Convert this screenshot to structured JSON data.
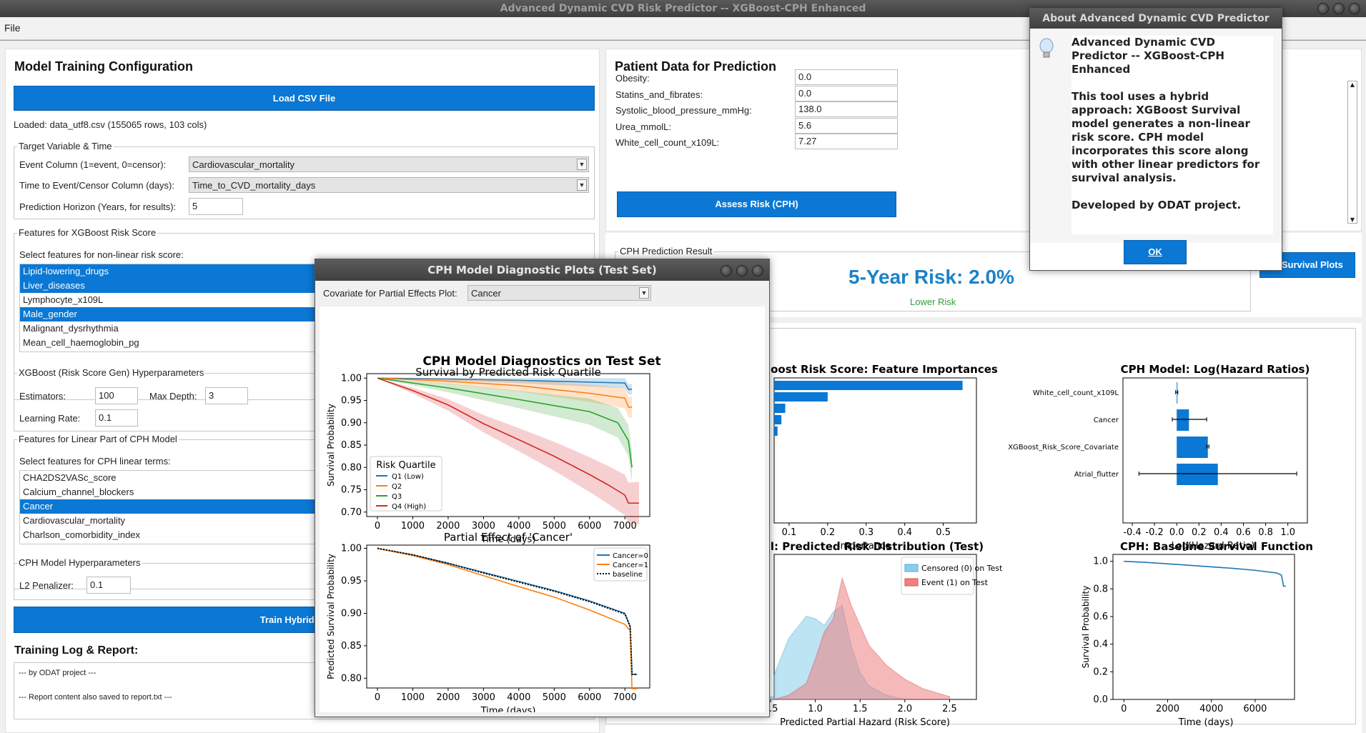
{
  "app": {
    "title": "Advanced Dynamic CVD Risk Predictor -- XGBoost-CPH Enhanced",
    "menu_file": "File"
  },
  "left": {
    "title": "Model Training Configuration",
    "load_button": "Load CSV File",
    "loaded_text": "Loaded: data_utf8.csv (155065 rows, 103 cols)",
    "target_group": "Target Variable & Time",
    "event_label": "Event Column (1=event, 0=censor):",
    "event_value": "Cardiovascular_mortality",
    "time_label": "Time to Event/Censor Column (days):",
    "time_value": "Time_to_CVD_mortality_days",
    "horizon_label": "Prediction Horizon (Years, for results):",
    "horizon_value": "5",
    "xgb_features_group": "Features for XGBoost Risk Score",
    "xgb_features_hint": "Select features for non-linear risk score:",
    "xgb_features": [
      {
        "label": "Lipid-lowering_drugs",
        "selected": true
      },
      {
        "label": "Liver_diseases",
        "selected": true
      },
      {
        "label": "Lymphocyte_x109L",
        "selected": false
      },
      {
        "label": "Male_gender",
        "selected": true
      },
      {
        "label": "Malignant_dysrhythmia",
        "selected": false
      },
      {
        "label": "Mean_cell_haemoglobin_pg",
        "selected": false
      }
    ],
    "xgb_hyper_group": "XGBoost (Risk Score Gen) Hyperparameters",
    "estimators_label": "Estimators:",
    "estimators_value": "100",
    "maxdepth_label": "Max Depth:",
    "maxdepth_value": "3",
    "lr_label": "Learning Rate:",
    "lr_value": "0.1",
    "cph_features_group": "Features for Linear Part of CPH Model",
    "cph_features_hint": "Select features for CPH linear terms:",
    "cph_features": [
      {
        "label": "CHA2DS2VASc_score",
        "selected": false
      },
      {
        "label": "Calcium_channel_blockers",
        "selected": false
      },
      {
        "label": "Cancer",
        "selected": true
      },
      {
        "label": "Cardiovascular_mortality",
        "selected": false
      },
      {
        "label": "Charlson_comorbidity_index",
        "selected": false
      }
    ],
    "cph_hyper_group": "CPH Model Hyperparameters",
    "l2_label": "L2 Penalizer:",
    "l2_value": "0.1",
    "train_button": "Train Hybrid XGBoo",
    "log_title": "Training Log & Report:",
    "log_lines": [
      "--- by ODAT project ---",
      "--- Report content also saved to report.txt ---"
    ]
  },
  "patient": {
    "title": "Patient Data for Prediction",
    "fields": [
      {
        "label": "Obesity:",
        "value": "0.0"
      },
      {
        "label": "Statins_and_fibrates:",
        "value": "0.0"
      },
      {
        "label": "Systolic_blood_pressure_mmHg:",
        "value": "138.0"
      },
      {
        "label": "Urea_mmolL:",
        "value": "5.6"
      },
      {
        "label": "White_cell_count_x109L:",
        "value": "7.27"
      }
    ],
    "assess_button": "Assess Risk (CPH)"
  },
  "result": {
    "group": "CPH Prediction Result",
    "risk_text": "5-Year Risk: 2.0%",
    "risk_level": "Lower Risk",
    "survival_button": "w Survival Plots"
  },
  "about": {
    "title": "About Advanced Dynamic CVD Predictor",
    "heading": "Advanced Dynamic CVD Predictor -- XGBoost-CPH Enhanced",
    "body": "This tool uses a hybrid approach: XGBoost Survival model generates a non-linear risk score. CPH model incorporates this score along with other linear predictors for survival analysis.",
    "footer": "Developed by ODAT project.",
    "ok": "OK"
  },
  "diag": {
    "title": "CPH Model Diagnostic Plots (Test Set)",
    "covariate_label": "Covariate for Partial Effects Plot:",
    "covariate_value": "Cancer"
  },
  "colors": {
    "accent": "#0a78d4",
    "q1": "#1f77b4",
    "q2": "#ff7f0e",
    "q3": "#2ca02c",
    "q4": "#d62728",
    "risk_text": "#1a82c8",
    "lower_risk": "#2e9e3a"
  },
  "chart_data": [
    {
      "type": "line",
      "suptitle": "CPH Model Diagnostics on Test Set",
      "title": "Survival by Predicted Risk Quartile",
      "xlabel": "Time (days)",
      "ylabel": "Survival Probability",
      "xlim": [
        0,
        7400
      ],
      "ylim": [
        0.69,
        1.01
      ],
      "xticks": [
        0,
        1000,
        2000,
        3000,
        4000,
        5000,
        6000,
        7000
      ],
      "yticks": [
        0.7,
        0.75,
        0.8,
        0.85,
        0.9,
        0.95,
        1.0
      ],
      "legend_title": "Risk Quartile",
      "legend_position": "lower-left",
      "series": [
        {
          "name": "Q1 (Low)",
          "x": [
            0,
            2000,
            4000,
            6000,
            7000,
            7100,
            7200
          ],
          "y": [
            1.0,
            0.998,
            0.995,
            0.991,
            0.989,
            0.975,
            0.975
          ]
        },
        {
          "name": "Q2",
          "x": [
            0,
            2000,
            4000,
            6000,
            7000,
            7100,
            7200
          ],
          "y": [
            1.0,
            0.993,
            0.983,
            0.966,
            0.955,
            0.935,
            0.935
          ]
        },
        {
          "name": "Q3",
          "x": [
            0,
            2000,
            4000,
            6000,
            6800,
            7100,
            7200
          ],
          "y": [
            1.0,
            0.978,
            0.952,
            0.925,
            0.9,
            0.86,
            0.8
          ]
        },
        {
          "name": "Q4 (High)",
          "x": [
            0,
            1000,
            2000,
            3000,
            4000,
            5000,
            6000,
            6500,
            7000,
            7100,
            7400
          ],
          "y": [
            1.0,
            0.972,
            0.94,
            0.898,
            0.862,
            0.825,
            0.784,
            0.762,
            0.738,
            0.72,
            0.72
          ]
        }
      ]
    },
    {
      "type": "line",
      "title": "Partial Effect of 'Cancer'",
      "xlabel": "Time (days)",
      "ylabel": "Predicted Survival Probability",
      "xlim": [
        0,
        7400
      ],
      "ylim": [
        0.785,
        1.005
      ],
      "xticks": [
        0,
        1000,
        2000,
        3000,
        4000,
        5000,
        6000,
        7000
      ],
      "yticks": [
        0.8,
        0.85,
        0.9,
        0.95,
        1.0
      ],
      "legend_position": "top-right",
      "series": [
        {
          "name": "Cancer=0",
          "x": [
            0,
            1000,
            2000,
            3000,
            4000,
            5000,
            6000,
            7000,
            7150,
            7200,
            7350
          ],
          "y": [
            1.0,
            0.99,
            0.977,
            0.963,
            0.949,
            0.935,
            0.919,
            0.9,
            0.88,
            0.806,
            0.806
          ]
        },
        {
          "name": "Cancer=1",
          "x": [
            0,
            1000,
            2000,
            3000,
            4000,
            5000,
            6000,
            7000,
            7150,
            7200,
            7350
          ],
          "y": [
            1.0,
            0.989,
            0.975,
            0.958,
            0.941,
            0.925,
            0.905,
            0.883,
            0.873,
            0.784,
            0.784
          ]
        },
        {
          "name": "baseline",
          "x": [
            0,
            1000,
            2000,
            3000,
            4000,
            5000,
            6000,
            7000,
            7150,
            7200,
            7350
          ],
          "y": [
            1.0,
            0.99,
            0.977,
            0.962,
            0.948,
            0.934,
            0.918,
            0.899,
            0.879,
            0.806,
            0.806
          ]
        }
      ]
    },
    {
      "type": "bar",
      "title": "oost Risk Score: Feature Importances",
      "xlabel": "Importance",
      "xlim": [
        0,
        0.56
      ],
      "xticks": [
        0.1,
        0.2,
        0.3,
        0.4,
        0.5
      ],
      "values": [
        0.55,
        0.2,
        0.09,
        0.08,
        0.07
      ]
    },
    {
      "type": "bar",
      "title": "CPH Model: Log(Hazard Ratios)",
      "xlabel": "Log(Hazard Ratio)",
      "xlim": [
        -0.4,
        1.15
      ],
      "xticks": [
        -0.4,
        -0.2,
        0.0,
        0.2,
        0.4,
        0.6,
        0.8,
        1.0
      ],
      "categories": [
        "White_cell_count_x109L",
        "Cancer",
        "XGBoost_Risk_Score_Covariate",
        "Atrial_flutter"
      ],
      "values": [
        0.005,
        0.11,
        0.28,
        0.37
      ],
      "ci_low": [
        -0.01,
        -0.04,
        0.27,
        -0.34
      ],
      "ci_high": [
        0.01,
        0.27,
        0.29,
        1.08
      ]
    },
    {
      "type": "area",
      "title": "l: Predicted Risk Distribution (Test)",
      "xlabel": "Predicted Partial Hazard (Risk Score)",
      "xlim": [
        0.3,
        2.8
      ],
      "xticks": [
        0.5,
        1.0,
        1.5,
        2.0,
        2.5
      ],
      "legend_position": "top-right",
      "series": [
        {
          "name": "Censored (0) on Test",
          "x": [
            0.3,
            0.5,
            0.7,
            0.9,
            1.0,
            1.1,
            1.2,
            1.3,
            1.4,
            1.5,
            1.6,
            1.8,
            2.0
          ],
          "y": [
            0.02,
            0.18,
            0.45,
            0.62,
            0.6,
            0.55,
            0.65,
            0.7,
            0.4,
            0.2,
            0.1,
            0.03,
            0.0
          ]
        },
        {
          "name": "Event (1) on Test",
          "x": [
            0.5,
            0.7,
            0.9,
            1.0,
            1.1,
            1.2,
            1.3,
            1.4,
            1.5,
            1.6,
            1.8,
            2.0,
            2.2,
            2.5
          ],
          "y": [
            0.0,
            0.03,
            0.12,
            0.3,
            0.5,
            0.6,
            0.9,
            0.7,
            0.55,
            0.4,
            0.25,
            0.15,
            0.08,
            0.02
          ]
        }
      ]
    },
    {
      "type": "line",
      "title": "CPH: Baseline Survival Function",
      "xlabel": "Time (days)",
      "ylabel": "Survival Probability",
      "xlim": [
        -500,
        7800
      ],
      "ylim": [
        0.0,
        1.05
      ],
      "xticks": [
        0,
        2000,
        4000,
        6000
      ],
      "yticks": [
        0.0,
        0.2,
        0.4,
        0.6,
        0.8,
        1.0
      ],
      "series": [
        {
          "name": "",
          "x": [
            0,
            1000,
            2000,
            3000,
            4000,
            5000,
            6000,
            7000,
            7200,
            7300,
            7400
          ],
          "y": [
            1.0,
            0.992,
            0.982,
            0.971,
            0.96,
            0.949,
            0.935,
            0.915,
            0.9,
            0.82,
            0.82
          ]
        }
      ]
    }
  ]
}
